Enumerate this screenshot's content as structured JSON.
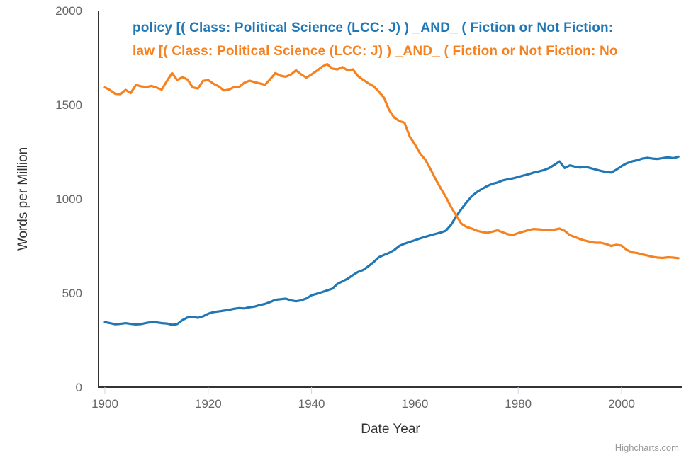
{
  "credit": {
    "label": "Highcharts.com"
  },
  "chart_data": {
    "type": "line",
    "title": "",
    "xlabel": "Date Year",
    "ylabel": "Words per Million",
    "x_ticks": [
      "1900",
      "1920",
      "1940",
      "1960",
      "1980",
      "2000"
    ],
    "y_ticks": [
      "0",
      "500",
      "1000",
      "1500",
      "2000"
    ],
    "x_start": 1900,
    "x_end": 2011,
    "xlim": [
      1900,
      2011
    ],
    "ylim": [
      0,
      2000
    ],
    "grid": false,
    "legend_position": "top-left",
    "colors": {
      "axis": "#333333",
      "tick_mark": "#ccd6eb",
      "tick_label": "#666666",
      "axis_title": "#333333",
      "credit": "#999999"
    },
    "series": [
      {
        "id": "policy",
        "label": "policy [( Class: Political Science (LCC: J) ) _AND_ ( Fiction or Not Fiction:",
        "color": "#2177b4",
        "values": [
          345,
          340,
          334,
          336,
          340,
          336,
          333,
          335,
          341,
          345,
          344,
          340,
          338,
          331,
          335,
          356,
          370,
          373,
          368,
          376,
          390,
          398,
          402,
          406,
          410,
          416,
          420,
          418,
          424,
          428,
          436,
          442,
          452,
          464,
          467,
          470,
          461,
          456,
          461,
          471,
          488,
          496,
          504,
          514,
          523,
          548,
          562,
          576,
          595,
          612,
          622,
          642,
          664,
          690,
          702,
          713,
          728,
          750,
          762,
          771,
          780,
          790,
          798,
          806,
          814,
          821,
          831,
          862,
          908,
          946,
          982,
          1014,
          1036,
          1053,
          1068,
          1080,
          1087,
          1098,
          1104,
          1109,
          1116,
          1124,
          1131,
          1140,
          1146,
          1153,
          1164,
          1181,
          1199,
          1164,
          1178,
          1171,
          1166,
          1171,
          1163,
          1156,
          1149,
          1143,
          1140,
          1155,
          1174,
          1189,
          1199,
          1205,
          1214,
          1218,
          1214,
          1212,
          1217,
          1221,
          1216,
          1224
        ]
      },
      {
        "id": "law",
        "label": "law [( Class: Political Science (LCC: J) ) _AND_ ( Fiction or Not Fiction: No",
        "color": "#f5821f",
        "values": [
          1592,
          1578,
          1558,
          1556,
          1579,
          1562,
          1605,
          1598,
          1594,
          1600,
          1591,
          1580,
          1626,
          1668,
          1631,
          1647,
          1634,
          1592,
          1586,
          1627,
          1631,
          1612,
          1598,
          1576,
          1580,
          1594,
          1595,
          1617,
          1628,
          1620,
          1613,
          1606,
          1636,
          1668,
          1654,
          1649,
          1660,
          1683,
          1661,
          1644,
          1661,
          1680,
          1701,
          1716,
          1692,
          1688,
          1700,
          1682,
          1688,
          1652,
          1632,
          1614,
          1598,
          1570,
          1538,
          1472,
          1432,
          1413,
          1404,
          1331,
          1290,
          1241,
          1209,
          1159,
          1105,
          1056,
          1010,
          957,
          912,
          868,
          851,
          842,
          831,
          824,
          820,
          826,
          833,
          822,
          812,
          808,
          818,
          826,
          834,
          840,
          838,
          835,
          833,
          836,
          842,
          830,
          807,
          797,
          786,
          778,
          771,
          767,
          767,
          760,
          750,
          756,
          752,
          729,
          716,
          712,
          705,
          699,
          692,
          688,
          686,
          690,
          688,
          685
        ]
      }
    ]
  }
}
